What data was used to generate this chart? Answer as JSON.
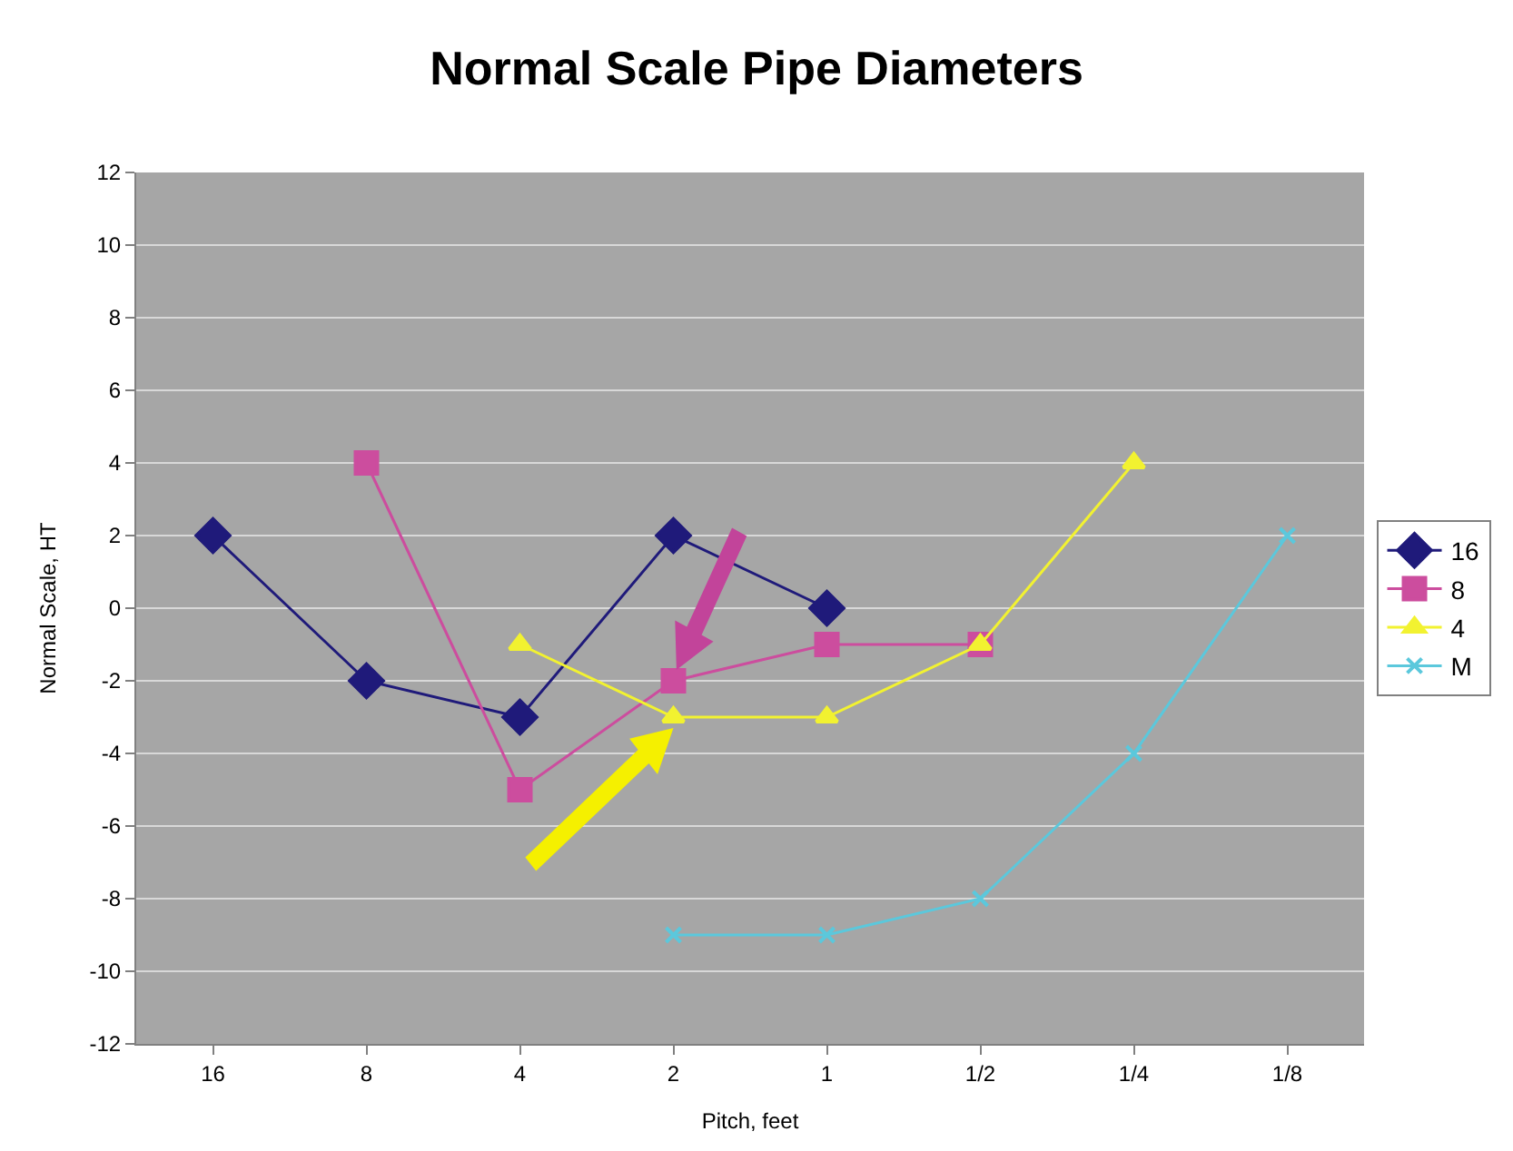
{
  "chart_data": {
    "type": "line",
    "title": "Normal Scale Pipe Diameters",
    "xlabel": "Pitch, feet",
    "ylabel": "Normal Scale, HT",
    "categories": [
      "16",
      "8",
      "4",
      "2",
      "1",
      "1/2",
      "1/4",
      "1/8"
    ],
    "series": [
      {
        "name": "16",
        "color": "#1f1a7a",
        "marker": "diamond",
        "values": [
          2,
          -2,
          -3,
          2,
          0,
          null,
          null,
          null
        ]
      },
      {
        "name": "8",
        "color": "#cc4d9e",
        "marker": "square",
        "values": [
          null,
          4,
          -5,
          -2,
          -1,
          -1,
          null,
          null
        ]
      },
      {
        "name": "4",
        "color": "#f2f230",
        "marker": "triangle",
        "values": [
          null,
          null,
          -1,
          -3,
          -3,
          -1,
          4,
          null
        ]
      },
      {
        "name": "M",
        "color": "#5bc8dc",
        "marker": "cross",
        "values": [
          null,
          null,
          null,
          -9,
          -9,
          -8,
          -4,
          2
        ]
      }
    ],
    "ylim": [
      -12,
      12
    ],
    "yticks": [
      -12,
      -10,
      -8,
      -6,
      -4,
      -2,
      0,
      2,
      4,
      6,
      8,
      10,
      12
    ],
    "grid": "y",
    "legend": "right"
  }
}
